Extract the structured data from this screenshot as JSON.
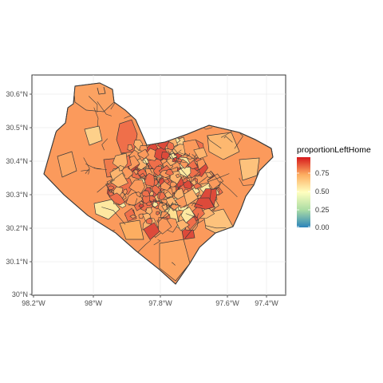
{
  "chart_data": {
    "type": "choropleth",
    "title": "",
    "xlabel": "",
    "ylabel": "",
    "x_axis": {
      "ticks": [
        "98.2°W",
        "98°W",
        "97.8°W",
        "97.6°W",
        "97.4°W"
      ]
    },
    "y_axis": {
      "ticks": [
        "30°N",
        "30.1°N",
        "30.2°N",
        "30.3°N",
        "30.4°N",
        "30.5°N",
        "30.6°N"
      ]
    },
    "grid": true,
    "legend": {
      "title": "proportionLeftHome",
      "placement": "right",
      "breaks": [
        "0.00",
        "0.25",
        "0.50",
        "0.75"
      ],
      "palette": [
        "#2b83ba",
        "#abdda4",
        "#ffffbf",
        "#fdae61",
        "#d7191c"
      ],
      "range": [
        0,
        1
      ]
    },
    "region_colors": {
      "dominant": "#fb9a5c",
      "high": "#ef6f4a",
      "very_high": "#dd4a3a",
      "mid": "#fdb46e",
      "low": "#fee8a0",
      "border": "#3a3a3a"
    }
  }
}
